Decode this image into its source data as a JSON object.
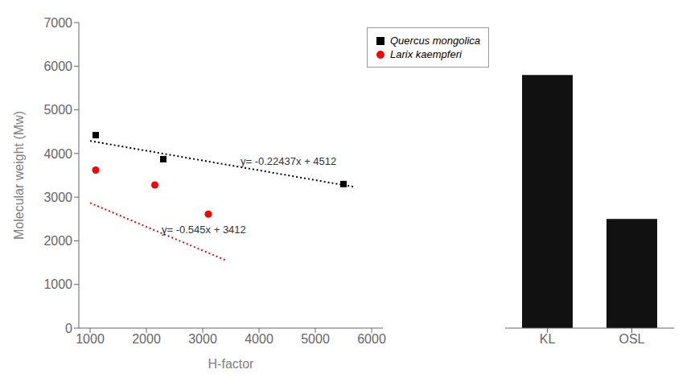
{
  "chart_data": [
    {
      "type": "scatter",
      "xlabel": "H-factor",
      "ylabel": "Molecular weight (Mw)",
      "xlim": [
        800,
        6200
      ],
      "xticks": [
        1000,
        2000,
        3000,
        4000,
        5000,
        6000
      ],
      "ylim": [
        0,
        7000
      ],
      "yticks": [
        0,
        1000,
        2000,
        3000,
        4000,
        5000,
        6000,
        7000
      ],
      "legend": "upper right",
      "series": [
        {
          "name": "Quercus mongolica",
          "type": "scatter",
          "color": "black",
          "marker": "square",
          "x": [
            1100,
            2300,
            5500
          ],
          "values": [
            4420,
            3870,
            3300
          ]
        },
        {
          "name": "Larix kaempferi",
          "type": "scatter",
          "color": "red",
          "marker": "circle",
          "x": [
            1100,
            2150,
            3100
          ],
          "values": [
            3620,
            3280,
            2610
          ]
        },
        {
          "type": "line",
          "line_style": "dotted",
          "color": "black",
          "x": [
            1000,
            5700
          ],
          "values": [
            4287.63,
            3233.091
          ]
        },
        {
          "type": "line",
          "line_style": "dotted",
          "color": "red",
          "x": [
            1000,
            3400
          ],
          "values": [
            2867,
            1559
          ]
        }
      ],
      "annotations": [
        {
          "text": "y= -0.22437x + 4512",
          "x": 3600,
          "y": 3820
        },
        {
          "text": "y= -0.545x + 3412",
          "x": 2200,
          "y": 2260
        }
      ]
    },
    {
      "type": "bar",
      "categories": [
        "KL",
        "OSL"
      ],
      "values": [
        5800,
        2500
      ],
      "color": "#111111",
      "ylim": [
        0,
        7000
      ],
      "tick_labels": "x"
    }
  ]
}
